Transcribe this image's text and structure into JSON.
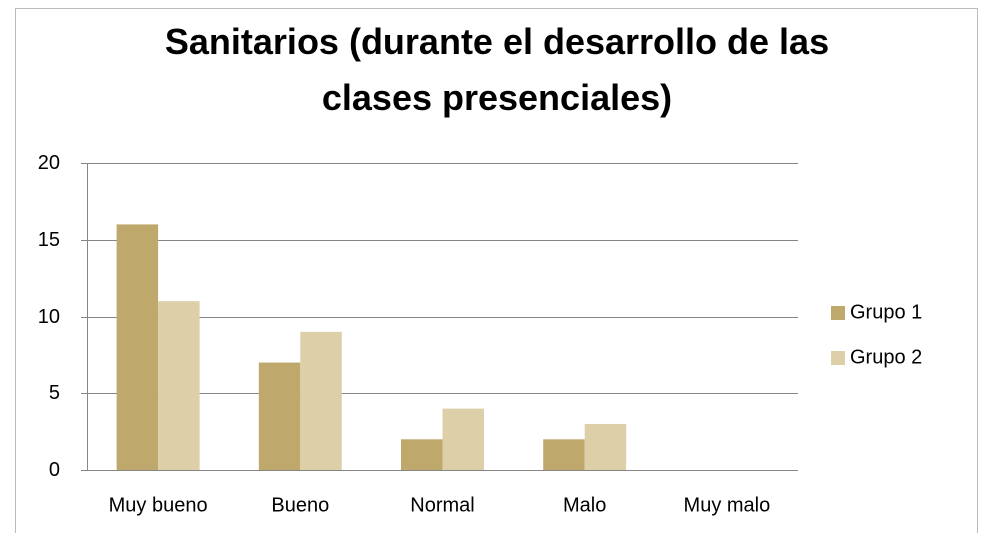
{
  "chart_data": {
    "type": "bar",
    "title": "Sanitarios (durante el desarrollo de las clases presenciales)",
    "categories": [
      "Muy bueno",
      "Bueno",
      "Normal",
      "Malo",
      "Muy malo"
    ],
    "series": [
      {
        "name": "Grupo 1",
        "color": "#bfa86b",
        "values": [
          16,
          7,
          2,
          2,
          0
        ]
      },
      {
        "name": "Grupo 2",
        "color": "#ddd0a9",
        "values": [
          11,
          9,
          4,
          3,
          0
        ]
      }
    ],
    "ylim": [
      0,
      20
    ],
    "yticks": [
      0,
      5,
      10,
      15,
      20
    ],
    "grid": true,
    "legend": "right"
  }
}
